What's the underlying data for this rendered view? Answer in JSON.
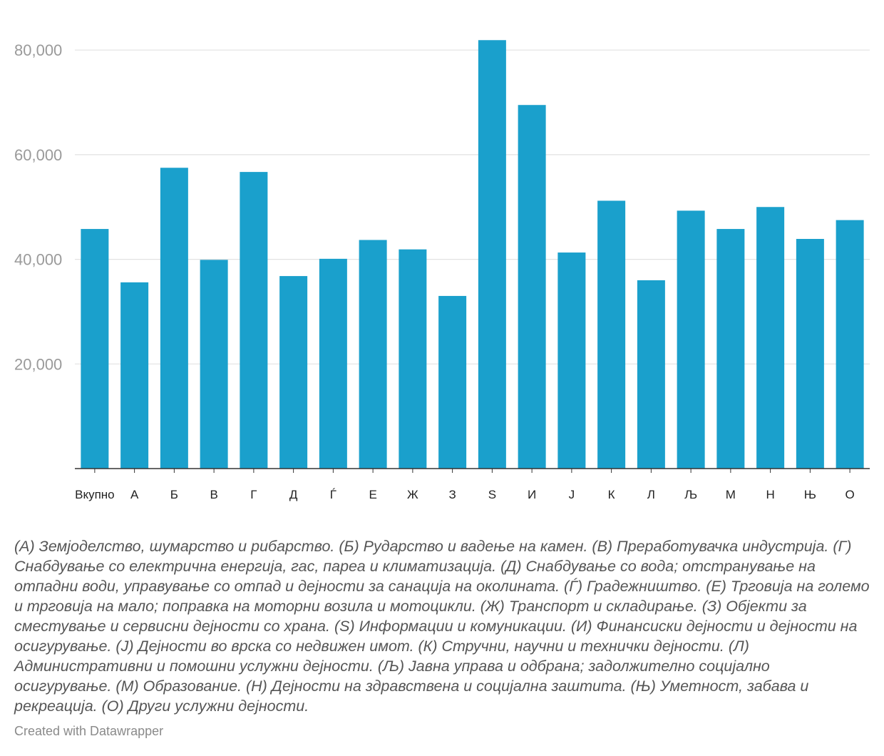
{
  "chart_data": {
    "type": "bar",
    "categories": [
      "Вкупно",
      "А",
      "Б",
      "В",
      "Г",
      "Д",
      "Ѓ",
      "Е",
      "Ж",
      "З",
      "S",
      "И",
      "Ј",
      "К",
      "Л",
      "Љ",
      "М",
      "Н",
      "Њ",
      "О"
    ],
    "values": [
      45800,
      35600,
      57500,
      39900,
      56700,
      36800,
      40100,
      43700,
      41900,
      33000,
      81900,
      69500,
      41300,
      51200,
      36000,
      49300,
      45800,
      50000,
      43900,
      47500
    ],
    "yticks": [
      20000,
      40000,
      60000,
      80000
    ],
    "ytick_labels": [
      "20,000",
      "40,000",
      "60,000",
      "80,000"
    ],
    "ylim": [
      0,
      84000
    ],
    "grid": true,
    "bar_color": "#1aa0cc",
    "title": "",
    "xlabel": "",
    "ylabel": ""
  },
  "notes": "(А) Земјоделство, шумарство и рибарство. (Б) Рударство и вадење на камен. (В) Преработувачка индустрија. (Г) Снабдување со електрична енергија, гас, пареа и климатизација. (Д) Снабдување со вода; отстранување на отпадни води, управување со отпад и дејности за санација на околината. (Ѓ) Градежништво. (Е) Трговија на големо и трговија на мало; поправка на моторни возила и мотоцикли. (Ж) Транспорт и складирање. (З) Објекти за сместување и сервисни дејности со храна. (S) Информации и комуникации. (И) Финансиски дејности и дејности на осигурување. (Ј) Дејности во врска со недвижен имот. (К) Стручни, научни и технички дејности. (Л) Административни и помошни услужни дејности. (Љ) Јавна управа и одбрана; задолжително социјално осигурување. (М) Образование. (Н) Дејности на здравствена и социјална заштита. (Њ) Уметност, забава и рекреација. (О) Други услужни дејности.",
  "credit": "Created with Datawrapper"
}
